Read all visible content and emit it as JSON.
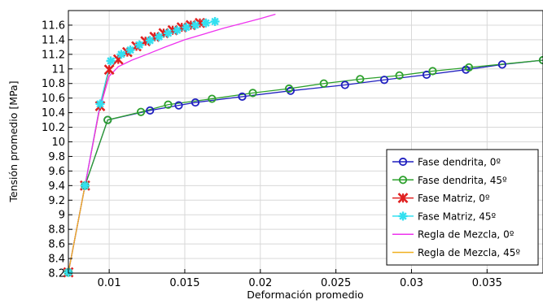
{
  "chart_data": {
    "type": "line",
    "title": "",
    "xlabel": "Deformación promedio",
    "ylabel": "Tensión promedio [MPa]",
    "xlim": [
      0.0073,
      0.0387
    ],
    "ylim": [
      8.2,
      11.8
    ],
    "grid": true,
    "legend_position": "bottom-right",
    "x_ticks": [
      {
        "value": 0.01,
        "label": "0.01"
      },
      {
        "value": 0.015,
        "label": "0.015"
      },
      {
        "value": 0.02,
        "label": "0.02"
      },
      {
        "value": 0.025,
        "label": "0.025"
      },
      {
        "value": 0.03,
        "label": "0.03"
      },
      {
        "value": 0.035,
        "label": "0.035"
      }
    ],
    "y_ticks": [
      {
        "value": 8.2,
        "label": "8.2"
      },
      {
        "value": 8.4,
        "label": "8.4"
      },
      {
        "value": 8.6,
        "label": "8.6"
      },
      {
        "value": 8.8,
        "label": "8.8"
      },
      {
        "value": 9.0,
        "label": "9"
      },
      {
        "value": 9.2,
        "label": "9.2"
      },
      {
        "value": 9.4,
        "label": "9.4"
      },
      {
        "value": 9.6,
        "label": "9.6"
      },
      {
        "value": 9.8,
        "label": "9.8"
      },
      {
        "value": 10.0,
        "label": "10"
      },
      {
        "value": 10.2,
        "label": "10.2"
      },
      {
        "value": 10.4,
        "label": "10.4"
      },
      {
        "value": 10.6,
        "label": "10.6"
      },
      {
        "value": 10.8,
        "label": "10.8"
      },
      {
        "value": 11.0,
        "label": "11"
      },
      {
        "value": 11.2,
        "label": "11.2"
      },
      {
        "value": 11.4,
        "label": "11.4"
      },
      {
        "value": 11.6,
        "label": "11.6"
      }
    ],
    "series": [
      {
        "name": "Fase dendrita, 0º",
        "color": "#1f1fbf",
        "marker": "circle",
        "x": [
          0.0073,
          0.0084,
          0.0099,
          0.0127,
          0.0146,
          0.0157,
          0.0188,
          0.022,
          0.0256,
          0.0282,
          0.031,
          0.0336,
          0.036,
          0.0387
        ],
        "y": [
          8.21,
          9.4,
          10.3,
          10.43,
          10.5,
          10.54,
          10.62,
          10.7,
          10.78,
          10.85,
          10.92,
          10.99,
          11.06,
          11.12
        ]
      },
      {
        "name": "Fase dendrita, 45º",
        "color": "#2ca02c",
        "marker": "circle",
        "x": [
          0.0073,
          0.0084,
          0.0099,
          0.0121,
          0.0139,
          0.0168,
          0.0195,
          0.0219,
          0.0242,
          0.0266,
          0.0292,
          0.0314,
          0.0338,
          0.0387
        ],
        "y": [
          8.21,
          9.4,
          10.3,
          10.41,
          10.51,
          10.59,
          10.67,
          10.73,
          10.8,
          10.86,
          10.91,
          10.97,
          11.02,
          11.12
        ]
      },
      {
        "name": "Fase Matriz, 0º",
        "color": "#e02020",
        "marker": "star",
        "x": [
          0.0073,
          0.0084,
          0.0094,
          0.01,
          0.0106,
          0.0112,
          0.0118,
          0.0124,
          0.013,
          0.0136,
          0.0142,
          0.0148,
          0.0154,
          0.016
        ],
        "y": [
          8.21,
          9.4,
          10.49,
          10.99,
          11.13,
          11.23,
          11.31,
          11.38,
          11.44,
          11.49,
          11.53,
          11.57,
          11.6,
          11.63
        ]
      },
      {
        "name": "Fase Matriz, 45º",
        "color": "#33e0f0",
        "marker": "asterisk",
        "x": [
          0.0073,
          0.0084,
          0.0094,
          0.0101,
          0.0108,
          0.0114,
          0.012,
          0.0127,
          0.0133,
          0.0139,
          0.0145,
          0.0151,
          0.0157,
          0.0164,
          0.017
        ],
        "y": [
          8.21,
          9.4,
          10.52,
          11.11,
          11.2,
          11.26,
          11.33,
          11.39,
          11.44,
          11.49,
          11.53,
          11.57,
          11.6,
          11.63,
          11.65
        ]
      },
      {
        "name": "Regla de Mezcla, 0º",
        "color": "#ee33ee",
        "marker": "none",
        "x": [
          0.0073,
          0.0084,
          0.0093,
          0.01,
          0.0106,
          0.0115,
          0.0125,
          0.0137,
          0.015,
          0.0163,
          0.0176,
          0.0189,
          0.02,
          0.021
        ],
        "y": [
          8.21,
          9.4,
          10.4,
          10.9,
          11.03,
          11.12,
          11.2,
          11.3,
          11.4,
          11.48,
          11.56,
          11.63,
          11.69,
          11.75
        ]
      },
      {
        "name": "Regla de Mezcla, 45º",
        "color": "#f0b020",
        "marker": "none",
        "x": [
          0.0073,
          0.0084
        ],
        "y": [
          8.21,
          9.4
        ]
      }
    ]
  }
}
